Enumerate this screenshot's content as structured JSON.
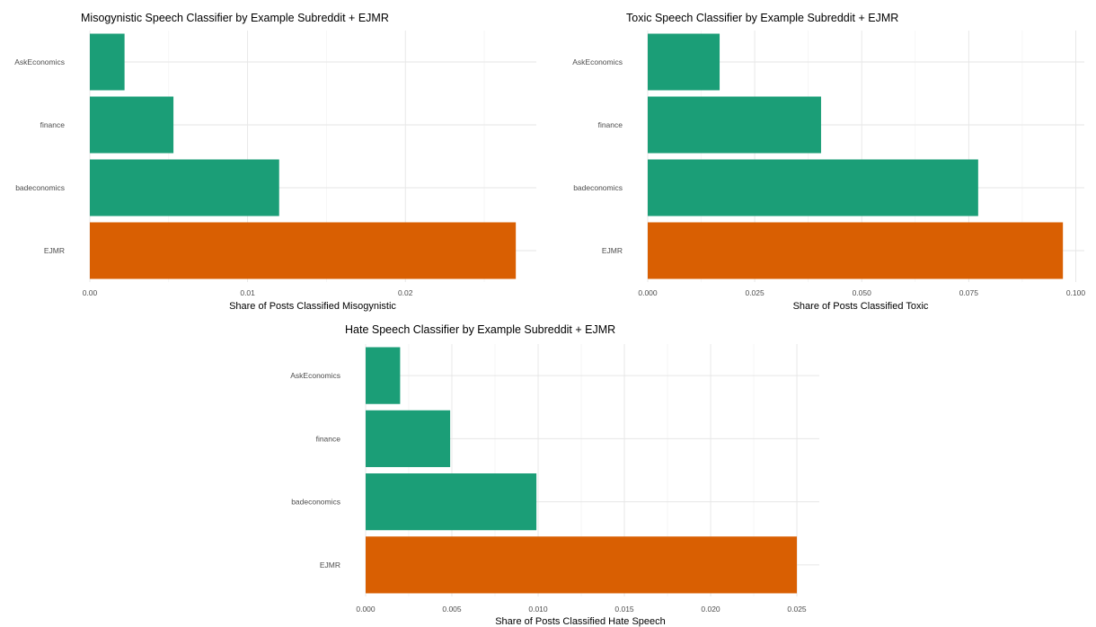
{
  "colors": {
    "subreddit": "#1b9e77",
    "ejmr": "#d95f02"
  },
  "chart_data": [
    {
      "type": "bar",
      "orientation": "horizontal",
      "title": "Misogynistic Speech Classifier by Example Subreddit + EJMR",
      "xlabel": "Share of Posts Classified Misogynistic",
      "ylabel": "",
      "categories": [
        "AskEconomics",
        "finance",
        "badeconomics",
        "EJMR"
      ],
      "values": [
        0.0022,
        0.0053,
        0.012,
        0.027
      ],
      "xlim": [
        0,
        0.0283
      ],
      "xticks": [
        0,
        0.01,
        0.02
      ],
      "xtick_labels": [
        "0.00",
        "0.01",
        "0.02"
      ],
      "grid": true,
      "legend": "none"
    },
    {
      "type": "bar",
      "orientation": "horizontal",
      "title": "Toxic Speech Classifier by Example Subreddit + EJMR",
      "xlabel": "Share of Posts Classified Toxic",
      "ylabel": "",
      "categories": [
        "AskEconomics",
        "finance",
        "badeconomics",
        "EJMR"
      ],
      "values": [
        0.0168,
        0.0405,
        0.0772,
        0.097
      ],
      "xlim": [
        0,
        0.102
      ],
      "xticks": [
        0,
        0.025,
        0.05,
        0.075,
        0.1
      ],
      "xtick_labels": [
        "0.000",
        "0.025",
        "0.050",
        "0.075",
        "0.100"
      ],
      "grid": true,
      "legend": "none"
    },
    {
      "type": "bar",
      "orientation": "horizontal",
      "title": "Hate Speech Classifier by Example Subreddit + EJMR",
      "xlabel": "Share of Posts Classified Hate Speech",
      "ylabel": "",
      "categories": [
        "AskEconomics",
        "finance",
        "badeconomics",
        "EJMR"
      ],
      "values": [
        0.002,
        0.0049,
        0.0099,
        0.025
      ],
      "xlim": [
        0,
        0.0263
      ],
      "xticks": [
        0,
        0.005,
        0.01,
        0.015,
        0.02,
        0.025
      ],
      "xtick_labels": [
        "0.000",
        "0.005",
        "0.010",
        "0.015",
        "0.020",
        "0.025"
      ],
      "grid": true,
      "legend": "none"
    }
  ]
}
